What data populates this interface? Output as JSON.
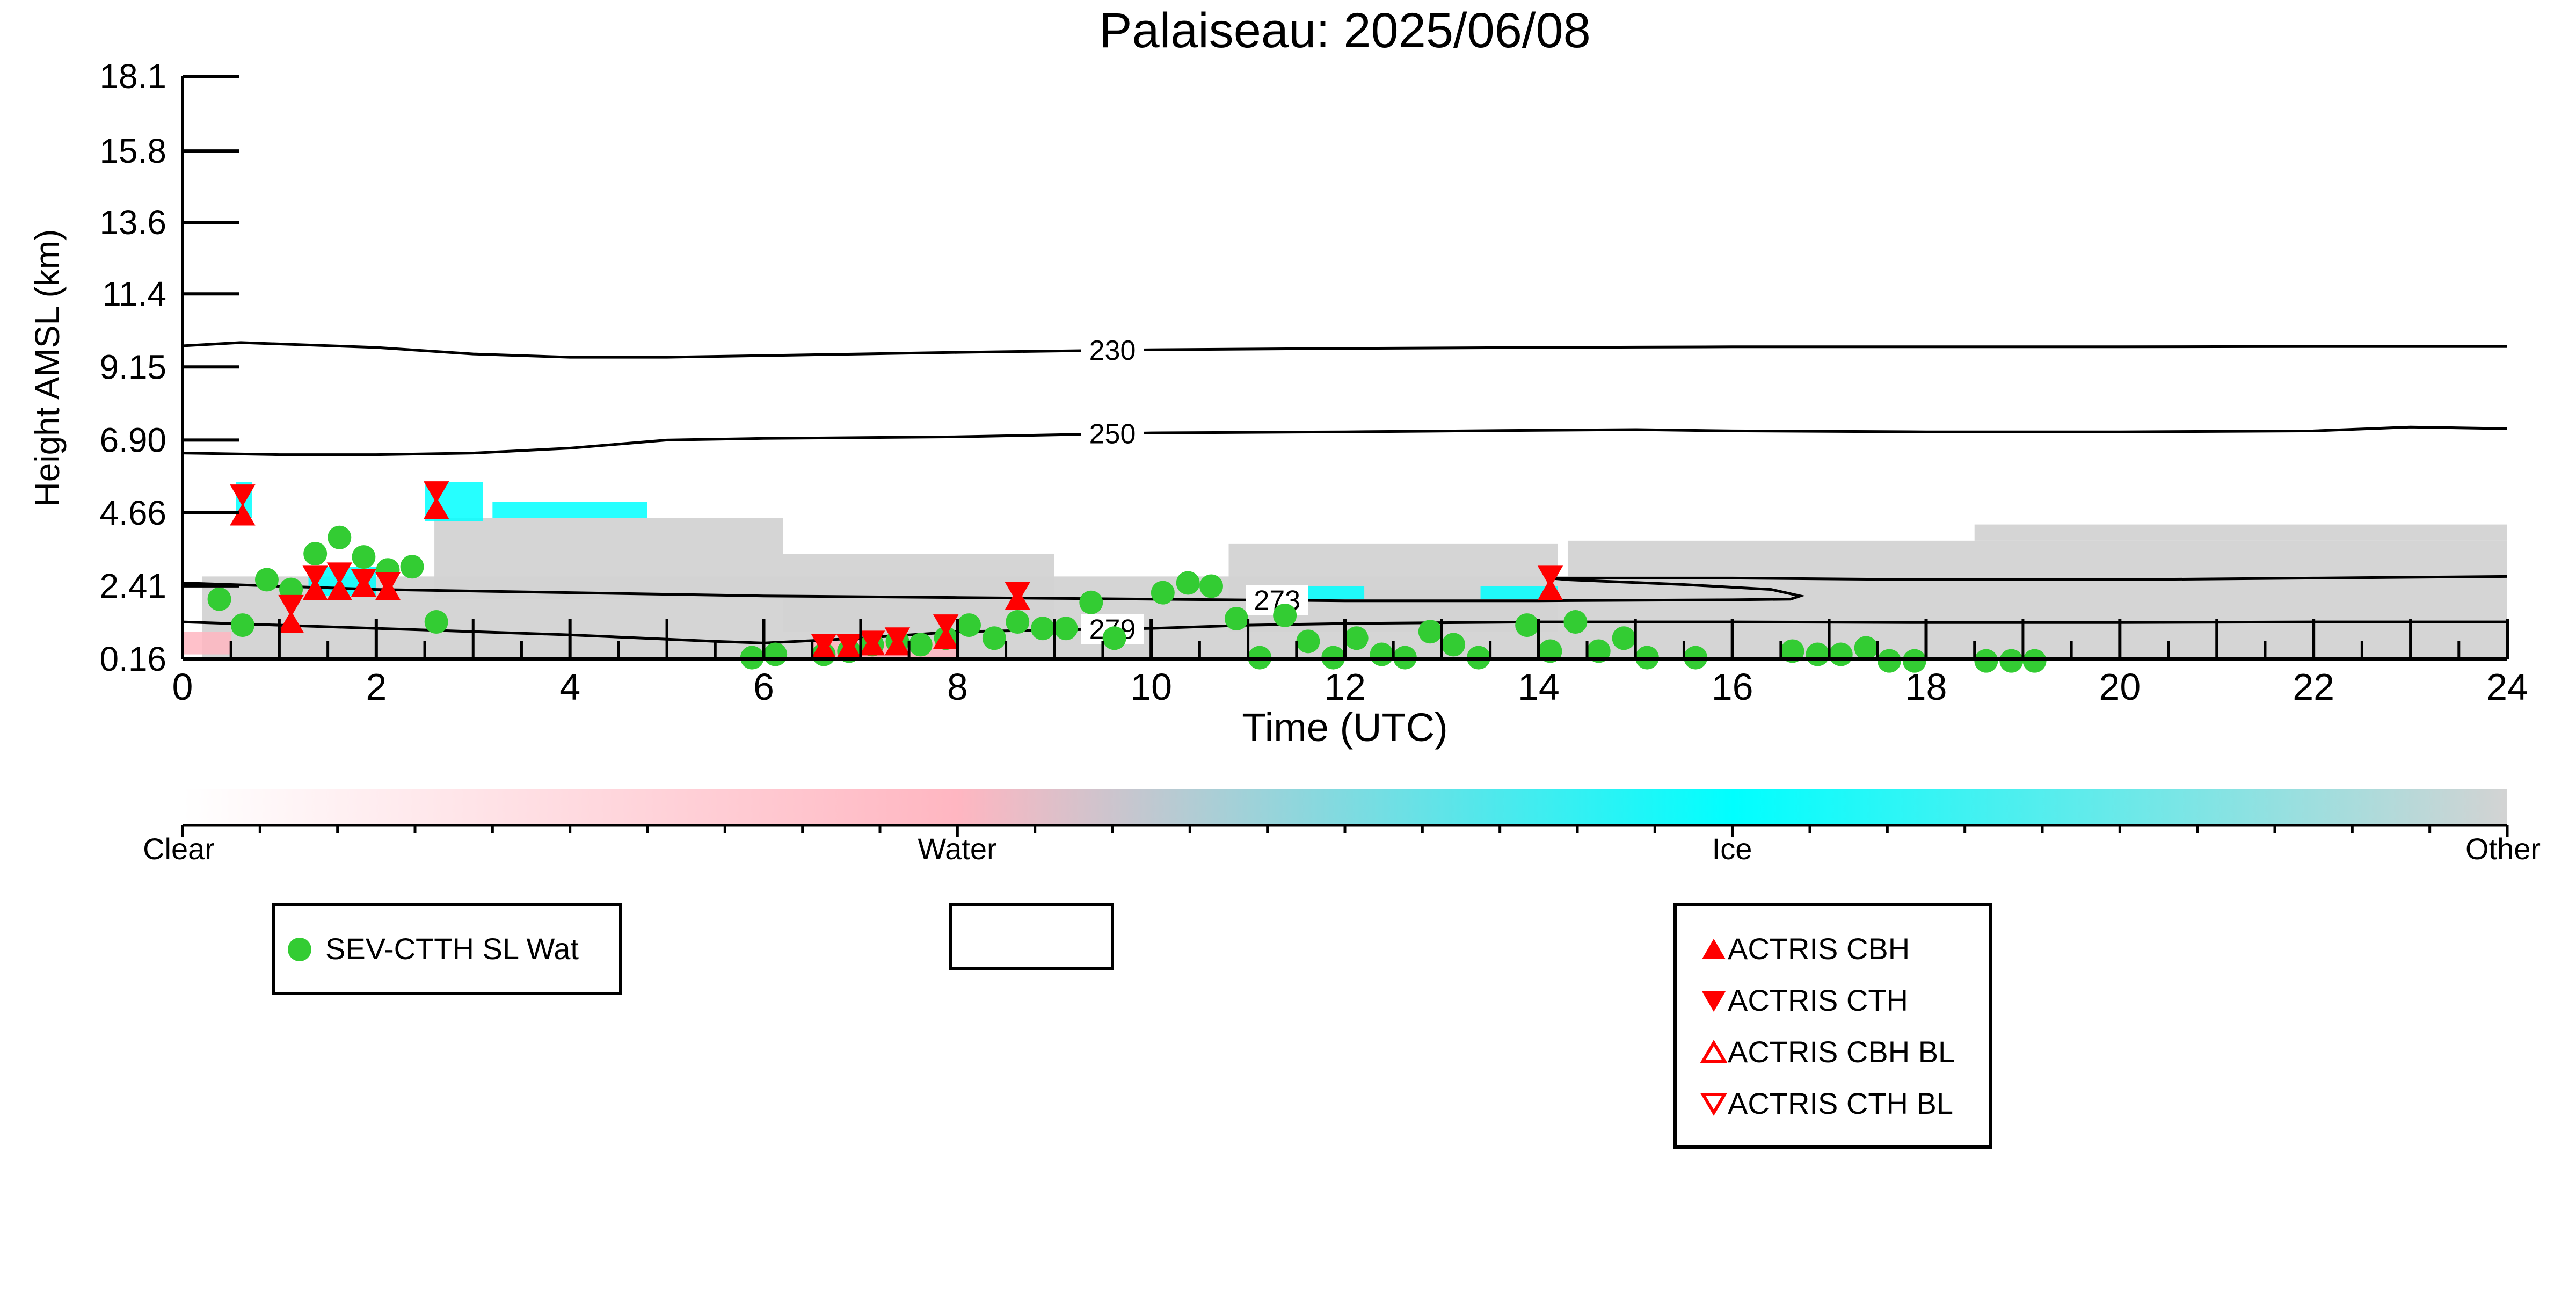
{
  "chart_data": {
    "type": "scatter",
    "title": "Palaiseau: 2025/06/08",
    "xlabel": "Time (UTC)",
    "ylabel": "Height AMSL (km)",
    "xlim": [
      0,
      24
    ],
    "ylim": [
      0.16,
      18.1
    ],
    "x_ticks": [
      "0",
      "2",
      "4",
      "6",
      "8",
      "10",
      "12",
      "14",
      "16",
      "18",
      "20",
      "22",
      "24"
    ],
    "y_ticks": [
      "0.16",
      "2.41",
      "4.66",
      "6.90",
      "9.15",
      "11.4",
      "13.6",
      "15.8",
      "18.1"
    ],
    "y_tick_values": [
      0.16,
      2.41,
      4.66,
      6.9,
      9.15,
      11.4,
      13.6,
      15.8,
      18.1
    ],
    "colorbar": {
      "labels": [
        "Clear",
        "Water",
        "Ice",
        "Other"
      ],
      "colors": [
        "#ffffff",
        "#ffb6c1",
        "#00ffff",
        "#d3d3d3"
      ]
    },
    "isotherms": [
      {
        "label": "230",
        "label_x": 9.6,
        "points": [
          [
            0,
            9.8
          ],
          [
            0.6,
            9.9
          ],
          [
            2,
            9.75
          ],
          [
            3,
            9.55
          ],
          [
            4,
            9.45
          ],
          [
            5,
            9.45
          ],
          [
            6,
            9.5
          ],
          [
            7,
            9.55
          ],
          [
            8,
            9.6
          ],
          [
            10,
            9.68
          ],
          [
            12,
            9.72
          ],
          [
            14,
            9.75
          ],
          [
            16,
            9.77
          ],
          [
            18,
            9.77
          ],
          [
            20,
            9.77
          ],
          [
            22,
            9.78
          ],
          [
            24,
            9.78
          ]
        ]
      },
      {
        "label": "250",
        "label_x": 9.6,
        "points": [
          [
            0,
            6.5
          ],
          [
            1,
            6.45
          ],
          [
            2,
            6.45
          ],
          [
            3,
            6.5
          ],
          [
            4,
            6.65
          ],
          [
            5,
            6.9
          ],
          [
            6,
            6.95
          ],
          [
            8,
            7.0
          ],
          [
            10,
            7.12
          ],
          [
            12,
            7.15
          ],
          [
            14,
            7.2
          ],
          [
            15,
            7.22
          ],
          [
            16,
            7.18
          ],
          [
            18,
            7.15
          ],
          [
            20,
            7.15
          ],
          [
            22,
            7.18
          ],
          [
            23,
            7.3
          ],
          [
            24,
            7.25
          ]
        ]
      },
      {
        "label": "273",
        "label_x": 11.3,
        "points": [
          [
            0,
            2.5
          ],
          [
            2,
            2.3
          ],
          [
            4,
            2.2
          ],
          [
            6,
            2.1
          ],
          [
            8,
            2.05
          ],
          [
            10,
            2.0
          ],
          [
            12,
            1.95
          ],
          [
            14,
            1.95
          ],
          [
            16,
            1.98
          ],
          [
            16.6,
            2.0
          ],
          [
            16.7,
            2.1
          ],
          [
            16.4,
            2.3
          ],
          [
            15.5,
            2.45
          ],
          [
            14.3,
            2.6
          ],
          [
            14.1,
            2.65
          ],
          [
            16,
            2.65
          ],
          [
            18,
            2.6
          ],
          [
            20,
            2.6
          ],
          [
            22,
            2.65
          ],
          [
            24,
            2.7
          ]
        ]
      },
      {
        "label": "279",
        "label_x": 9.6,
        "points": [
          [
            0,
            1.3
          ],
          [
            2,
            1.1
          ],
          [
            4,
            0.9
          ],
          [
            5.5,
            0.7
          ],
          [
            6,
            0.65
          ],
          [
            7,
            0.8
          ],
          [
            8,
            1.0
          ],
          [
            9,
            1.05
          ],
          [
            10,
            1.1
          ],
          [
            11,
            1.2
          ],
          [
            12,
            1.25
          ],
          [
            14,
            1.3
          ],
          [
            16,
            1.3
          ],
          [
            18,
            1.28
          ],
          [
            20,
            1.28
          ],
          [
            22,
            1.3
          ],
          [
            24,
            1.3
          ]
        ]
      }
    ],
    "series": [
      {
        "name": "SEV-CTTH SL Wat",
        "marker": "circle",
        "color": "#33cc33",
        "points": [
          [
            0.38,
            2.0
          ],
          [
            0.62,
            1.2
          ],
          [
            0.87,
            2.6
          ],
          [
            1.12,
            2.3
          ],
          [
            1.37,
            3.4
          ],
          [
            1.62,
            3.9
          ],
          [
            1.87,
            3.3
          ],
          [
            2.12,
            2.9
          ],
          [
            2.37,
            3.0
          ],
          [
            2.62,
            1.3
          ],
          [
            5.88,
            0.2
          ],
          [
            6.12,
            0.3
          ],
          [
            6.62,
            0.3
          ],
          [
            6.88,
            0.4
          ],
          [
            7.12,
            0.6
          ],
          [
            7.38,
            0.7
          ],
          [
            7.62,
            0.6
          ],
          [
            7.88,
            0.8
          ],
          [
            8.12,
            1.2
          ],
          [
            8.38,
            0.8
          ],
          [
            8.62,
            1.3
          ],
          [
            8.88,
            1.1
          ],
          [
            9.12,
            1.1
          ],
          [
            9.38,
            1.9
          ],
          [
            9.62,
            0.8
          ],
          [
            10.12,
            2.2
          ],
          [
            10.38,
            2.5
          ],
          [
            10.62,
            2.4
          ],
          [
            10.88,
            1.4
          ],
          [
            11.12,
            0.2
          ],
          [
            11.38,
            1.5
          ],
          [
            11.62,
            0.7
          ],
          [
            11.88,
            0.2
          ],
          [
            12.12,
            0.8
          ],
          [
            12.38,
            0.3
          ],
          [
            12.62,
            0.2
          ],
          [
            12.88,
            1.0
          ],
          [
            13.12,
            0.6
          ],
          [
            13.38,
            0.2
          ],
          [
            13.88,
            1.2
          ],
          [
            14.12,
            0.4
          ],
          [
            14.38,
            1.3
          ],
          [
            14.62,
            0.4
          ],
          [
            14.88,
            0.8
          ],
          [
            15.12,
            0.2
          ],
          [
            15.62,
            0.2
          ],
          [
            16.62,
            0.4
          ],
          [
            16.88,
            0.3
          ],
          [
            17.12,
            0.3
          ],
          [
            17.38,
            0.5
          ],
          [
            17.62,
            0.1
          ],
          [
            17.88,
            0.1
          ],
          [
            18.62,
            0.1
          ],
          [
            18.88,
            0.1
          ],
          [
            19.12,
            0.1
          ]
        ]
      },
      {
        "name": "ACTRIS CBH",
        "marker": "triangle-up",
        "color": "#ff0000",
        "filled": true,
        "points": [
          [
            0.62,
            4.6
          ],
          [
            1.12,
            1.3
          ],
          [
            1.37,
            2.3
          ],
          [
            1.62,
            2.3
          ],
          [
            1.87,
            2.4
          ],
          [
            2.12,
            2.3
          ],
          [
            2.62,
            4.8
          ],
          [
            6.62,
            0.5
          ],
          [
            6.88,
            0.5
          ],
          [
            7.12,
            0.6
          ],
          [
            7.38,
            0.6
          ],
          [
            7.88,
            0.8
          ],
          [
            8.62,
            2.0
          ],
          [
            14.12,
            2.3
          ]
        ]
      },
      {
        "name": "ACTRIS CTH",
        "marker": "triangle-down",
        "color": "#ff0000",
        "filled": true,
        "points": [
          [
            0.62,
            5.2
          ],
          [
            1.12,
            1.8
          ],
          [
            1.37,
            2.7
          ],
          [
            1.62,
            2.8
          ],
          [
            1.87,
            2.6
          ],
          [
            2.12,
            2.5
          ],
          [
            2.62,
            5.3
          ],
          [
            6.62,
            0.6
          ],
          [
            6.88,
            0.6
          ],
          [
            7.12,
            0.7
          ],
          [
            7.38,
            0.8
          ],
          [
            7.88,
            1.2
          ],
          [
            8.62,
            2.2
          ],
          [
            14.12,
            2.7
          ]
        ]
      },
      {
        "name": "ACTRIS CBH BL",
        "marker": "triangle-up",
        "color": "#ff0000",
        "filled": false,
        "points": []
      },
      {
        "name": "ACTRIS CTH BL",
        "marker": "triangle-down",
        "color": "#ff0000",
        "filled": false,
        "points": []
      }
    ],
    "classification_blocks": [
      {
        "class": "Other",
        "x": [
          0.2,
          24
        ],
        "y": [
          0.16,
          2.7
        ]
      },
      {
        "class": "Other",
        "x": [
          2.6,
          6.2
        ],
        "y": [
          2.0,
          4.5
        ]
      },
      {
        "class": "Other",
        "x": [
          6.2,
          9.0
        ],
        "y": [
          1.0,
          3.4
        ]
      },
      {
        "class": "Other",
        "x": [
          10.8,
          14.2
        ],
        "y": [
          1.0,
          3.7
        ]
      },
      {
        "class": "Other",
        "x": [
          14.3,
          24
        ],
        "y": [
          2.7,
          3.8
        ]
      },
      {
        "class": "Other",
        "x": [
          18.5,
          24
        ],
        "y": [
          3.8,
          4.3
        ]
      },
      {
        "class": "Ice",
        "x": [
          0.55,
          0.72
        ],
        "y": [
          4.5,
          5.6
        ]
      },
      {
        "class": "Ice",
        "x": [
          2.5,
          3.1
        ],
        "y": [
          4.4,
          5.6
        ]
      },
      {
        "class": "Ice",
        "x": [
          3.2,
          4.8
        ],
        "y": [
          4.5,
          5.0
        ]
      },
      {
        "class": "Ice",
        "x": [
          1.3,
          2.0
        ],
        "y": [
          2.1,
          3.0
        ]
      },
      {
        "class": "Ice",
        "x": [
          11.0,
          12.2
        ],
        "y": [
          2.0,
          2.4
        ]
      },
      {
        "class": "Ice",
        "x": [
          13.4,
          14.2
        ],
        "y": [
          2.0,
          2.4
        ]
      },
      {
        "class": "Water",
        "x": [
          0.0,
          0.5
        ],
        "y": [
          0.3,
          1.0
        ]
      },
      {
        "class": "Water",
        "x": [
          6.5,
          8.0
        ],
        "y": [
          0.16,
          0.7
        ]
      }
    ]
  },
  "legends": {
    "box1": [
      "SEV-CTTH SL Wat"
    ],
    "box3": [
      "ACTRIS CBH",
      "ACTRIS CTH",
      "ACTRIS CBH BL",
      "ACTRIS CTH BL"
    ]
  }
}
